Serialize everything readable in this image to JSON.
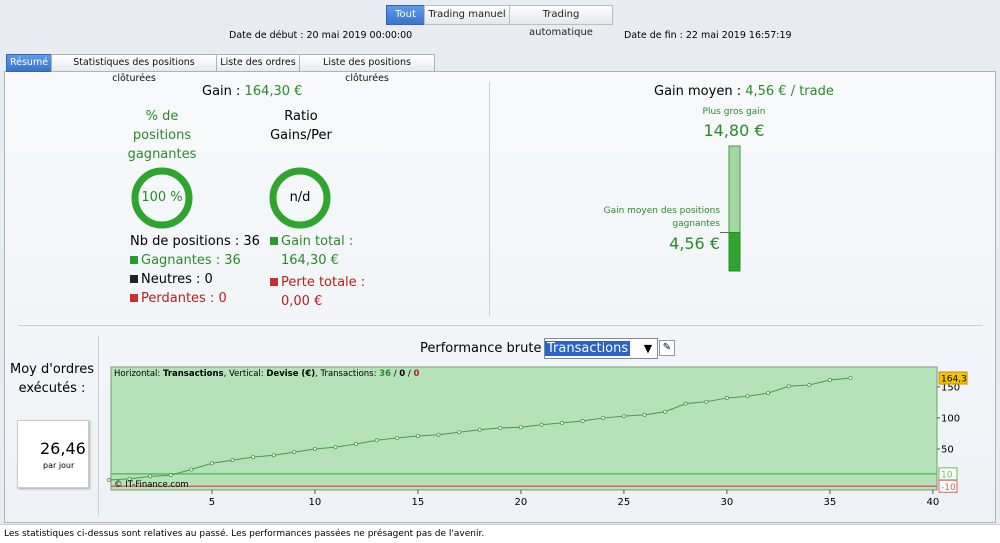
{
  "mode_tabs": [
    "Tout",
    "Trading manuel",
    "Trading automatique"
  ],
  "dates": {
    "start": "Date de début : 20 mai 2019 00:00:00",
    "end": "Date de fin : 22 mai 2019 16:57:19"
  },
  "tabs": [
    "Résumé",
    "Statistiques des positions clôturées",
    "Liste des ordres",
    "Liste des positions clôturées"
  ],
  "gain": {
    "label": "Gain : ",
    "value": "164,30 €"
  },
  "winning": {
    "label": "% de positions gagnantes",
    "value": 100,
    "value_label": "100 %"
  },
  "ratio": {
    "label": "Ratio Gains/Per",
    "value": "n/d"
  },
  "counts": {
    "positions": "Nb de positions : 36",
    "gagnantes": "Gagnantes : 36",
    "neutres": "Neutres : 0",
    "perdantes": "Perdantes : 0"
  },
  "totals": {
    "gain_label": "Gain total :",
    "gain": "164,30 €",
    "loss_label": "Perte totale :",
    "loss": "0,00 €"
  },
  "average": {
    "label": "Gain moyen : ",
    "value": "4,56 € / trade",
    "max_label": "Plus gros gain",
    "max": 14.8,
    "max_text": "14,80 €",
    "avg_label": "Gain moyen des positions gagnantes",
    "avg": 4.56,
    "avg_text": "4,56 €"
  },
  "orders": {
    "label": "Moy d'ordres exécutés :",
    "value": "26,46",
    "unit": "par jour"
  },
  "performance": {
    "title": "Performance brute",
    "select": "Transactions"
  },
  "chart_data": {
    "type": "line",
    "info": {
      "h_label": "Horizontal: ",
      "h_value": "Transactions",
      "v_label": ", Vertical: ",
      "v_value": "Devise (€)",
      "t_label": ", Transactions: ",
      "wins": "36",
      "sep": " / ",
      "neutral": "0",
      "losses": "0"
    },
    "watermark": "© IT-Finance.com",
    "x": [
      0,
      1,
      2,
      3,
      4,
      5,
      6,
      7,
      8,
      9,
      10,
      11,
      12,
      13,
      14,
      15,
      16,
      17,
      18,
      19,
      20,
      21,
      22,
      23,
      24,
      25,
      26,
      27,
      28,
      29,
      30,
      31,
      32,
      33,
      34,
      35,
      36
    ],
    "series": [
      {
        "name": "Transactions",
        "color": "#4a9a4a",
        "values": [
          0,
          2,
          6,
          8,
          17,
          27,
          32,
          37,
          40,
          45,
          50,
          53,
          58,
          64,
          68,
          71,
          73,
          77,
          81,
          84,
          85,
          89,
          92,
          95,
          100,
          103,
          105,
          110,
          123,
          126,
          132,
          135,
          140,
          151,
          153,
          161,
          164.3
        ]
      }
    ],
    "last_label": {
      "value": 164.3,
      "label": "164,3"
    },
    "thresholds": [
      {
        "value": 10,
        "color": "#5cc05c"
      },
      {
        "value": -10,
        "color": "#e06060"
      }
    ],
    "xlim": [
      0.1,
      40.2
    ],
    "ylim": [
      -16,
      182
    ],
    "xticks": [
      5,
      10,
      15,
      20,
      25,
      30,
      35,
      40
    ],
    "yticks": [
      50,
      100,
      150
    ]
  },
  "footer": "Les statistiques ci-dessus sont relatives au passé. Les performances passées ne présagent pas de l'avenir."
}
